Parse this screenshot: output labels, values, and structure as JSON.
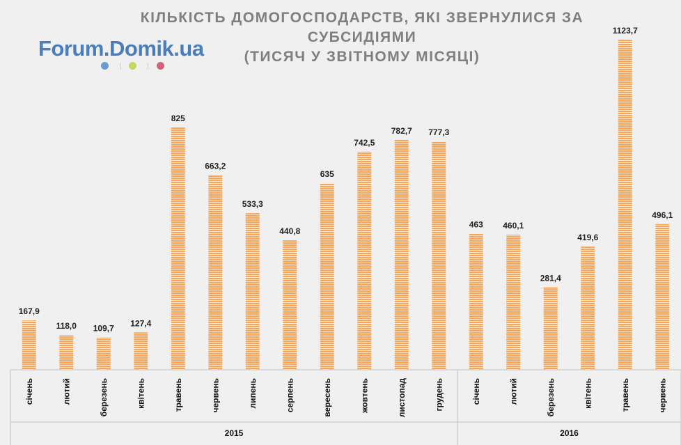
{
  "logo": {
    "text": "Forum.Domik.ua",
    "dot_colors": [
      "#6a9bd1",
      "#c8d65a",
      "#d4607a"
    ]
  },
  "chart_data": {
    "type": "bar",
    "title_lines": [
      "КІЛЬКІСТЬ ДОМОГОСПОДАРСТВ, ЯКІ ЗВЕРНУЛИСЯ ЗА",
      "СУБСИДІЯМИ",
      "(ТИСЯЧ У ЗВІТНОМУ МІСЯЦІ)"
    ],
    "categories": [
      "січень",
      "лютий",
      "березень",
      "квітень",
      "травень",
      "червень",
      "липень",
      "серпень",
      "вересень",
      "жовтень",
      "листопад",
      "грудень",
      "січень",
      "лютий",
      "березень",
      "квітень",
      "травень",
      "червень"
    ],
    "values": [
      167.9,
      118.0,
      109.7,
      127.4,
      825,
      663.2,
      533.3,
      440.8,
      635,
      742.5,
      782.7,
      777.3,
      463,
      460.1,
      281.4,
      419.6,
      1123.7,
      496.1
    ],
    "value_labels": [
      "167,9",
      "118,0",
      "109,7",
      "127,4",
      "825",
      "663,2",
      "533,3",
      "440,8",
      "635",
      "742,5",
      "782,7",
      "777,3",
      "463",
      "460,1",
      "281,4",
      "419,6",
      "1123,7",
      "496,1"
    ],
    "groups": [
      {
        "label": "2015",
        "count": 12
      },
      {
        "label": "2016",
        "count": 6
      }
    ],
    "ylim": [
      0,
      1150
    ],
    "grid": false,
    "bar_color": "#f5a65b"
  }
}
